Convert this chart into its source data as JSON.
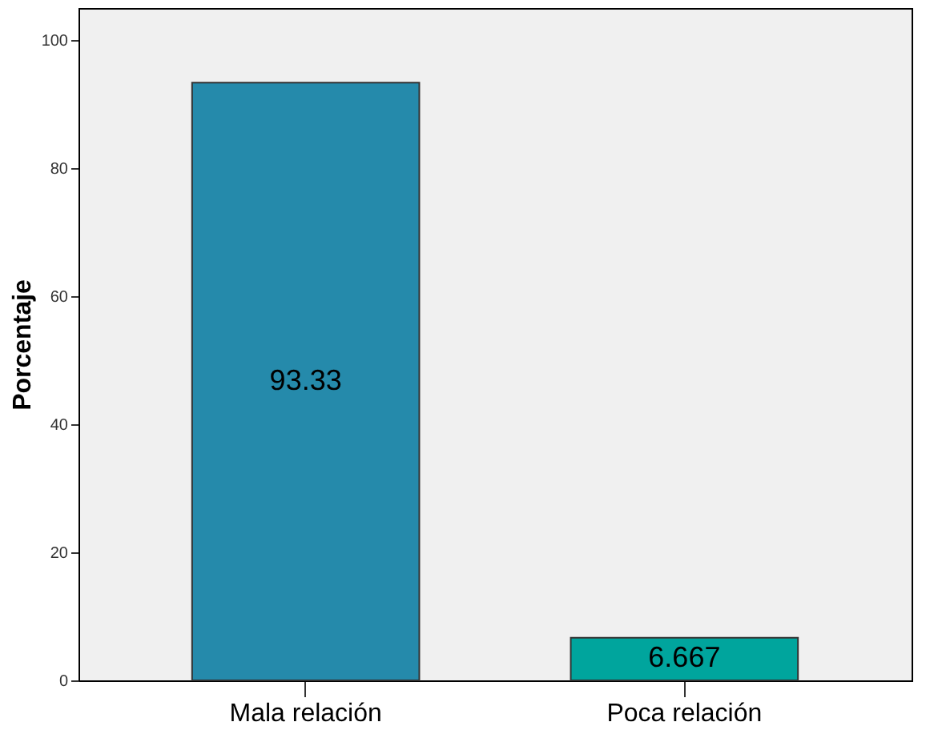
{
  "chart_data": {
    "type": "bar",
    "ylabel": "Porcentaje",
    "categories": [
      "Mala relación",
      "Poca relación"
    ],
    "values": [
      93.33,
      6.667
    ],
    "colors": [
      "#258aab",
      "#00a59d"
    ],
    "ylim": [
      0,
      105
    ],
    "yticks": [
      0,
      20,
      40,
      60,
      80,
      100
    ],
    "data_labels": true
  }
}
